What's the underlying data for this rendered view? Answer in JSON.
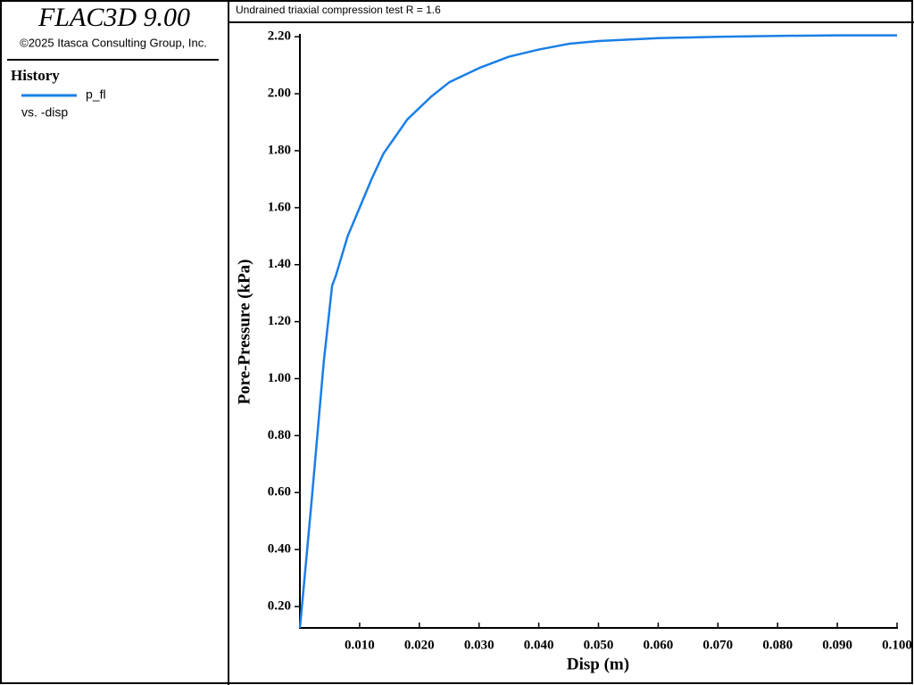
{
  "app": {
    "title": "FLAC3D 9.00",
    "copyright": "©2025 Itasca Consulting Group, Inc."
  },
  "panel": {
    "heading": "History",
    "subtitle": "vs. -disp"
  },
  "chart_data": {
    "type": "line",
    "title": "Undrained triaxial compression test R = 1.6",
    "x_label": "Disp (m)",
    "y_label": "Pore-Pressure (kPa)",
    "x": [
      0,
      0.001,
      0.002,
      0.003,
      0.004,
      0.0054,
      0.006,
      0.008,
      0.01,
      0.012,
      0.014,
      0.016,
      0.018,
      0.02,
      0.022,
      0.025,
      0.03,
      0.035,
      0.04,
      0.045,
      0.05,
      0.055,
      0.06,
      0.07,
      0.08,
      0.09,
      0.1
    ],
    "series": [
      {
        "name": "p_fl",
        "color": "#1a7fe6",
        "values": [
          0.125,
          0.35,
          0.58,
          0.82,
          1.06,
          1.327,
          1.36,
          1.5,
          1.6,
          1.7,
          1.79,
          1.85,
          1.91,
          1.95,
          1.99,
          2.04,
          2.09,
          2.13,
          2.155,
          2.175,
          2.185,
          2.19,
          2.195,
          2.2,
          2.203,
          2.205,
          2.205
        ]
      }
    ],
    "xlim": [
      0,
      0.1
    ],
    "ylim": [
      0.125,
      2.21
    ],
    "xticks": [
      {
        "value": 0.01,
        "label": "0.010"
      },
      {
        "value": 0.02,
        "label": "0.020"
      },
      {
        "value": 0.03,
        "label": "0.030"
      },
      {
        "value": 0.04,
        "label": "0.040"
      },
      {
        "value": 0.05,
        "label": "0.050"
      },
      {
        "value": 0.06,
        "label": "0.060"
      },
      {
        "value": 0.07,
        "label": "0.070"
      },
      {
        "value": 0.08,
        "label": "0.080"
      },
      {
        "value": 0.09,
        "label": "0.090"
      },
      {
        "value": 0.1,
        "label": "0.100"
      }
    ],
    "yticks": [
      {
        "value": 0.2,
        "label": "0.20"
      },
      {
        "value": 0.4,
        "label": "0.40"
      },
      {
        "value": 0.6,
        "label": "0.60"
      },
      {
        "value": 0.8,
        "label": "0.80"
      },
      {
        "value": 1.0,
        "label": "1.00"
      },
      {
        "value": 1.2,
        "label": "1.20"
      },
      {
        "value": 1.4,
        "label": "1.40"
      },
      {
        "value": 1.6,
        "label": "1.60"
      },
      {
        "value": 1.8,
        "label": "1.80"
      },
      {
        "value": 2.0,
        "label": "2.00"
      },
      {
        "value": 2.2,
        "label": "2.20"
      }
    ]
  }
}
